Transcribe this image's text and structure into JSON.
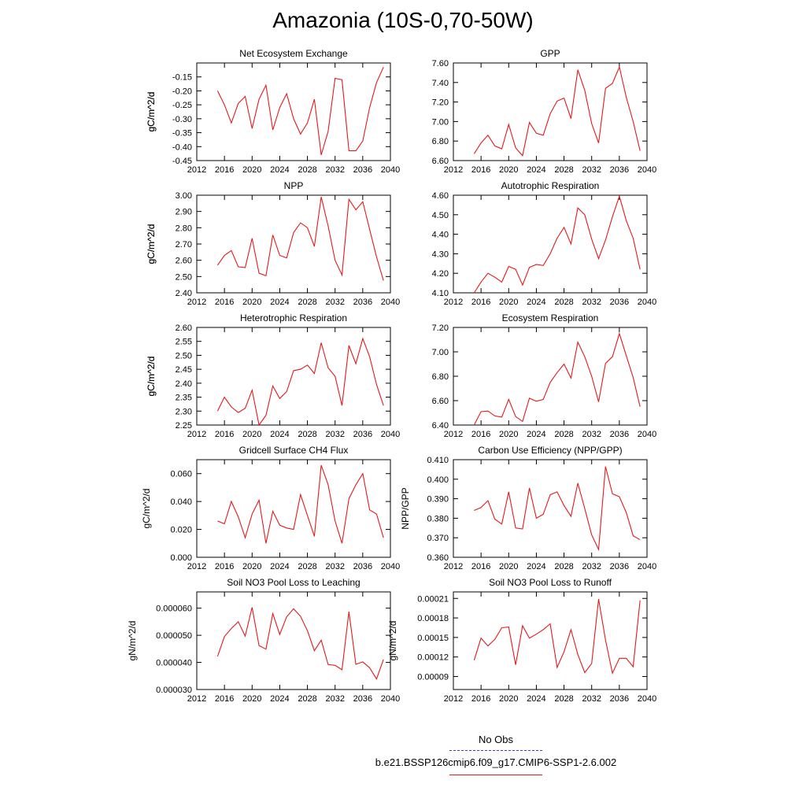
{
  "page_title": "Amazonia (10S-0,70-50W)",
  "legend": {
    "obs_label": "No Obs",
    "model_label": "b.e21.BSSP126cmip6.f09_g17.CMIP6-SSP1-2.6.002",
    "obs_color": "#3b3bd6",
    "model_color": "#e31a1c"
  },
  "chart_data": [
    {
      "type": "line",
      "title": "Net Ecosystem Exchange",
      "ylabel": "gC/m^2/d",
      "xlim": [
        2012,
        2040
      ],
      "xticks": [
        2012,
        2016,
        2020,
        2024,
        2028,
        2032,
        2036,
        2040
      ],
      "xtick_labels": [
        "2012",
        "2016",
        "2020",
        "2024",
        "2028",
        "2032",
        "2036",
        "2040"
      ],
      "ylim": [
        -0.45,
        -0.1
      ],
      "yticks": [
        -0.45,
        -0.4,
        -0.35,
        -0.3,
        -0.25,
        -0.2,
        -0.15
      ],
      "ytick_labels": [
        "-0.45",
        "-0.40",
        "-0.35",
        "-0.30",
        "-0.25",
        "-0.20",
        "-0.15"
      ],
      "grid": false,
      "series": [
        {
          "color": "#e31a1c",
          "x": [
            2015,
            2016,
            2017,
            2018,
            2019,
            2020,
            2021,
            2022,
            2023,
            2024,
            2025,
            2026,
            2027,
            2028,
            2029,
            2030,
            2031,
            2032,
            2033,
            2034,
            2035,
            2036,
            2037,
            2038,
            2039
          ],
          "values": [
            -0.2,
            -0.25,
            -0.315,
            -0.245,
            -0.22,
            -0.335,
            -0.23,
            -0.18,
            -0.34,
            -0.26,
            -0.21,
            -0.3,
            -0.355,
            -0.315,
            -0.23,
            -0.43,
            -0.345,
            -0.155,
            -0.16,
            -0.415,
            -0.415,
            -0.38,
            -0.26,
            -0.17,
            -0.115
          ]
        }
      ]
    },
    {
      "type": "line",
      "title": "GPP",
      "ylabel": "gC/m^2/d",
      "xlim": [
        2012,
        2040
      ],
      "xticks": [
        2012,
        2016,
        2020,
        2024,
        2028,
        2032,
        2036,
        2040
      ],
      "xtick_labels": [
        "2012",
        "2016",
        "2020",
        "2024",
        "2028",
        "2032",
        "2036",
        "2040"
      ],
      "ylim": [
        6.6,
        7.6
      ],
      "yticks": [
        6.6,
        6.8,
        7.0,
        7.2,
        7.4,
        7.6
      ],
      "ytick_labels": [
        "6.60",
        "6.80",
        "7.00",
        "7.20",
        "7.40",
        "7.60"
      ],
      "grid": false,
      "series": [
        {
          "color": "#e31a1c",
          "x": [
            2015,
            2016,
            2017,
            2018,
            2019,
            2020,
            2021,
            2022,
            2023,
            2024,
            2025,
            2026,
            2027,
            2028,
            2029,
            2030,
            2031,
            2032,
            2033,
            2034,
            2035,
            2036,
            2037,
            2038,
            2039
          ],
          "values": [
            6.67,
            6.78,
            6.86,
            6.75,
            6.72,
            6.97,
            6.73,
            6.65,
            6.99,
            6.88,
            6.86,
            7.08,
            7.21,
            7.24,
            7.03,
            7.53,
            7.32,
            6.98,
            6.78,
            7.34,
            7.39,
            7.56,
            7.25,
            7.0,
            6.7
          ]
        }
      ]
    },
    {
      "type": "line",
      "title": "NPP",
      "ylabel": "gC/m^2/d",
      "xlim": [
        2012,
        2040
      ],
      "xticks": [
        2012,
        2016,
        2020,
        2024,
        2028,
        2032,
        2036,
        2040
      ],
      "xtick_labels": [
        "2012",
        "2016",
        "2020",
        "2024",
        "2028",
        "2032",
        "2036",
        "2040"
      ],
      "ylim": [
        2.4,
        3.0
      ],
      "yticks": [
        2.4,
        2.5,
        2.6,
        2.7,
        2.8,
        2.9,
        3.0
      ],
      "ytick_labels": [
        "2.40",
        "2.50",
        "2.60",
        "2.70",
        "2.80",
        "2.90",
        "3.00"
      ],
      "grid": false,
      "series": [
        {
          "color": "#e31a1c",
          "x": [
            2015,
            2016,
            2017,
            2018,
            2019,
            2020,
            2021,
            2022,
            2023,
            2024,
            2025,
            2026,
            2027,
            2028,
            2029,
            2030,
            2031,
            2032,
            2033,
            2034,
            2035,
            2036,
            2037,
            2038,
            2039
          ],
          "values": [
            2.57,
            2.63,
            2.66,
            2.56,
            2.555,
            2.735,
            2.52,
            2.505,
            2.755,
            2.63,
            2.615,
            2.77,
            2.83,
            2.8,
            2.685,
            2.99,
            2.81,
            2.6,
            2.51,
            2.975,
            2.91,
            2.96,
            2.79,
            2.62,
            2.475
          ]
        }
      ]
    },
    {
      "type": "line",
      "title": "Autotrophic Respiration",
      "ylabel": "gC/m^2/d",
      "xlim": [
        2012,
        2040
      ],
      "xticks": [
        2012,
        2016,
        2020,
        2024,
        2028,
        2032,
        2036,
        2040
      ],
      "xtick_labels": [
        "2012",
        "2016",
        "2020",
        "2024",
        "2028",
        "2032",
        "2036",
        "2040"
      ],
      "ylim": [
        4.1,
        4.6
      ],
      "yticks": [
        4.1,
        4.2,
        4.3,
        4.4,
        4.5,
        4.6
      ],
      "ytick_labels": [
        "4.10",
        "4.20",
        "4.30",
        "4.40",
        "4.50",
        "4.60"
      ],
      "grid": false,
      "series": [
        {
          "color": "#e31a1c",
          "x": [
            2015,
            2016,
            2017,
            2018,
            2019,
            2020,
            2021,
            2022,
            2023,
            2024,
            2025,
            2026,
            2027,
            2028,
            2029,
            2030,
            2031,
            2032,
            2033,
            2034,
            2035,
            2036,
            2037,
            2038,
            2039
          ],
          "values": [
            4.1,
            4.155,
            4.2,
            4.18,
            4.155,
            4.235,
            4.22,
            4.14,
            4.23,
            4.245,
            4.24,
            4.3,
            4.38,
            4.435,
            4.35,
            4.535,
            4.5,
            4.375,
            4.275,
            4.37,
            4.49,
            4.595,
            4.47,
            4.38,
            4.22
          ]
        }
      ]
    },
    {
      "type": "line",
      "title": "Heterotrophic Respiration",
      "ylabel": "gC/m^2/d",
      "xlim": [
        2012,
        2040
      ],
      "xticks": [
        2012,
        2016,
        2020,
        2024,
        2028,
        2032,
        2036,
        2040
      ],
      "xtick_labels": [
        "2012",
        "2016",
        "2020",
        "2024",
        "2028",
        "2032",
        "2036",
        "2040"
      ],
      "ylim": [
        2.25,
        2.6
      ],
      "yticks": [
        2.25,
        2.3,
        2.35,
        2.4,
        2.45,
        2.5,
        2.55,
        2.6
      ],
      "ytick_labels": [
        "2.25",
        "2.30",
        "2.35",
        "2.40",
        "2.45",
        "2.50",
        "2.55",
        "2.60"
      ],
      "grid": false,
      "series": [
        {
          "color": "#e31a1c",
          "x": [
            2015,
            2016,
            2017,
            2018,
            2019,
            2020,
            2021,
            2022,
            2023,
            2024,
            2025,
            2026,
            2027,
            2028,
            2029,
            2030,
            2031,
            2032,
            2033,
            2034,
            2035,
            2036,
            2037,
            2038,
            2039
          ],
          "values": [
            2.3,
            2.35,
            2.315,
            2.295,
            2.31,
            2.375,
            2.25,
            2.285,
            2.39,
            2.345,
            2.37,
            2.445,
            2.45,
            2.465,
            2.435,
            2.545,
            2.455,
            2.425,
            2.32,
            2.535,
            2.47,
            2.56,
            2.495,
            2.395,
            2.32
          ]
        }
      ]
    },
    {
      "type": "line",
      "title": "Ecosystem Respiration",
      "ylabel": "gC/m^2/d",
      "xlim": [
        2012,
        2040
      ],
      "xticks": [
        2012,
        2016,
        2020,
        2024,
        2028,
        2032,
        2036,
        2040
      ],
      "xtick_labels": [
        "2012",
        "2016",
        "2020",
        "2024",
        "2028",
        "2032",
        "2036",
        "2040"
      ],
      "ylim": [
        6.4,
        7.2
      ],
      "yticks": [
        6.4,
        6.6,
        6.8,
        7.0,
        7.2
      ],
      "ytick_labels": [
        "6.40",
        "6.60",
        "6.80",
        "7.00",
        "7.20"
      ],
      "grid": false,
      "series": [
        {
          "color": "#e31a1c",
          "x": [
            2015,
            2016,
            2017,
            2018,
            2019,
            2020,
            2021,
            2022,
            2023,
            2024,
            2025,
            2026,
            2027,
            2028,
            2029,
            2030,
            2031,
            2032,
            2033,
            2034,
            2035,
            2036,
            2037,
            2038,
            2039
          ],
          "values": [
            6.4,
            6.51,
            6.515,
            6.475,
            6.465,
            6.61,
            6.47,
            6.43,
            6.62,
            6.595,
            6.61,
            6.75,
            6.83,
            6.9,
            6.785,
            7.08,
            6.96,
            6.8,
            6.59,
            6.905,
            6.96,
            7.15,
            6.97,
            6.79,
            6.55
          ]
        }
      ]
    },
    {
      "type": "line",
      "title": "Gridcell Surface CH4 Flux",
      "ylabel": "gC/m^2/d",
      "xlim": [
        2012,
        2040
      ],
      "xticks": [
        2012,
        2016,
        2020,
        2024,
        2028,
        2032,
        2036,
        2040
      ],
      "xtick_labels": [
        "2012",
        "2016",
        "2020",
        "2024",
        "2028",
        "2032",
        "2036",
        "2040"
      ],
      "ylim": [
        0.0,
        0.07
      ],
      "yticks": [
        0.0,
        0.02,
        0.04,
        0.06
      ],
      "ytick_labels": [
        "0.000",
        "0.020",
        "0.040",
        "0.060"
      ],
      "grid": false,
      "series": [
        {
          "color": "#e31a1c",
          "x": [
            2015,
            2016,
            2017,
            2018,
            2019,
            2020,
            2021,
            2022,
            2023,
            2024,
            2025,
            2026,
            2027,
            2028,
            2029,
            2030,
            2031,
            2032,
            2033,
            2034,
            2035,
            2036,
            2037,
            2038,
            2039
          ],
          "values": [
            0.026,
            0.024,
            0.04,
            0.029,
            0.014,
            0.031,
            0.041,
            0.01,
            0.033,
            0.023,
            0.021,
            0.02,
            0.045,
            0.03,
            0.015,
            0.066,
            0.052,
            0.026,
            0.01,
            0.042,
            0.052,
            0.06,
            0.034,
            0.031,
            0.014
          ]
        }
      ]
    },
    {
      "type": "line",
      "title": "Carbon Use Efficiency (NPP/GPP)",
      "ylabel": "NPP/GPP",
      "xlim": [
        2012,
        2040
      ],
      "xticks": [
        2012,
        2016,
        2020,
        2024,
        2028,
        2032,
        2036,
        2040
      ],
      "xtick_labels": [
        "2012",
        "2016",
        "2020",
        "2024",
        "2028",
        "2032",
        "2036",
        "2040"
      ],
      "ylim": [
        0.36,
        0.41
      ],
      "yticks": [
        0.36,
        0.37,
        0.38,
        0.39,
        0.4,
        0.41
      ],
      "ytick_labels": [
        "0.360",
        "0.370",
        "0.380",
        "0.390",
        "0.400",
        "0.410"
      ],
      "grid": false,
      "series": [
        {
          "color": "#e31a1c",
          "x": [
            2015,
            2016,
            2017,
            2018,
            2019,
            2020,
            2021,
            2022,
            2023,
            2024,
            2025,
            2026,
            2027,
            2028,
            2029,
            2030,
            2031,
            2032,
            2033,
            2034,
            2035,
            2036,
            2037,
            2038,
            2039
          ],
          "values": [
            0.384,
            0.3855,
            0.389,
            0.3795,
            0.377,
            0.3935,
            0.375,
            0.3745,
            0.3955,
            0.38,
            0.382,
            0.392,
            0.3935,
            0.3865,
            0.381,
            0.398,
            0.385,
            0.3715,
            0.364,
            0.4065,
            0.3925,
            0.391,
            0.383,
            0.371,
            0.369
          ]
        }
      ]
    },
    {
      "type": "line",
      "title": "Soil NO3 Pool Loss to Leaching",
      "ylabel": "gN/m^2/d",
      "xlim": [
        2012,
        2040
      ],
      "xticks": [
        2012,
        2016,
        2020,
        2024,
        2028,
        2032,
        2036,
        2040
      ],
      "xtick_labels": [
        "2012",
        "2016",
        "2020",
        "2024",
        "2028",
        "2032",
        "2036",
        "2040"
      ],
      "ylim": [
        3e-05,
        6.6e-05
      ],
      "yticks": [
        3e-05,
        4e-05,
        5e-05,
        6e-05
      ],
      "ytick_labels": [
        "0.000030",
        "0.000040",
        "0.000050",
        "0.000060"
      ],
      "grid": false,
      "series": [
        {
          "color": "#e31a1c",
          "x": [
            2015,
            2016,
            2017,
            2018,
            2019,
            2020,
            2021,
            2022,
            2023,
            2024,
            2025,
            2026,
            2027,
            2028,
            2029,
            2030,
            2031,
            2032,
            2033,
            2034,
            2035,
            2036,
            2037,
            2038,
            2039
          ],
          "values": [
            4.22e-05,
            4.95e-05,
            5.25e-05,
            5.5e-05,
            4.97e-05,
            6.03e-05,
            4.62e-05,
            4.49e-05,
            5.8e-05,
            5.03e-05,
            5.68e-05,
            5.98e-05,
            5.7e-05,
            5.17e-05,
            4.43e-05,
            4.82e-05,
            3.92e-05,
            3.89e-05,
            3.73e-05,
            5.87e-05,
            3.93e-05,
            4.02e-05,
            3.8e-05,
            3.39e-05,
            4.11e-05
          ]
        }
      ]
    },
    {
      "type": "line",
      "title": "Soil NO3 Pool Loss to Runoff",
      "ylabel": "gN/m^2/d",
      "xlim": [
        2012,
        2040
      ],
      "xticks": [
        2012,
        2016,
        2020,
        2024,
        2028,
        2032,
        2036,
        2040
      ],
      "xtick_labels": [
        "2012",
        "2016",
        "2020",
        "2024",
        "2028",
        "2032",
        "2036",
        "2040"
      ],
      "ylim": [
        7e-05,
        0.00022
      ],
      "yticks": [
        9e-05,
        0.00012,
        0.00015,
        0.00018,
        0.00021
      ],
      "ytick_labels": [
        "0.00009",
        "0.00012",
        "0.00015",
        "0.00018",
        "0.00021"
      ],
      "grid": false,
      "series": [
        {
          "color": "#e31a1c",
          "x": [
            2015,
            2016,
            2017,
            2018,
            2019,
            2020,
            2021,
            2022,
            2023,
            2024,
            2025,
            2026,
            2027,
            2028,
            2029,
            2030,
            2031,
            2032,
            2033,
            2034,
            2035,
            2036,
            2037,
            2038,
            2039
          ],
          "values": [
            0.000115,
            0.000149,
            0.000137,
            0.000147,
            0.000165,
            0.000166,
            0.000108,
            0.000168,
            0.000149,
            0.000155,
            0.000162,
            0.000171,
            0.000104,
            0.000128,
            0.000162,
            0.000124,
            9.6e-05,
            0.00011,
            0.000209,
            0.000146,
            9.5e-05,
            0.000118,
            0.000118,
            0.000105,
            0.000207
          ]
        }
      ]
    }
  ]
}
